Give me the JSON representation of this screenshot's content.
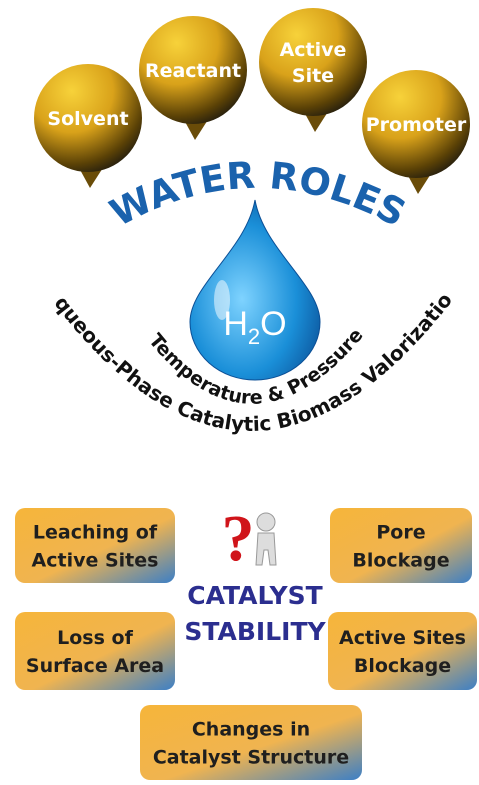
{
  "roles": [
    {
      "label": [
        "Solvent"
      ]
    },
    {
      "label": [
        "Reactant"
      ]
    },
    {
      "label": [
        "Active",
        "Site"
      ]
    },
    {
      "label": [
        "Promoter"
      ]
    }
  ],
  "title": "WATER ROLES",
  "drop": {
    "label": [
      "H",
      "2",
      "O"
    ]
  },
  "inner_arc": "Temperature & Pressure",
  "outer_arc": "Aqueous-Phase Catalytic Biomass Valorization",
  "center": [
    "CATALYST",
    "STABILITY"
  ],
  "issues": [
    {
      "label": [
        "Leaching of",
        "Active Sites"
      ]
    },
    {
      "label": [
        "Pore",
        "Blockage"
      ]
    },
    {
      "label": [
        "Loss of",
        "Surface Area"
      ]
    },
    {
      "label": [
        "Active Sites",
        "Blockage"
      ]
    },
    {
      "label": [
        "Changes in",
        "Catalyst Structure"
      ]
    }
  ]
}
